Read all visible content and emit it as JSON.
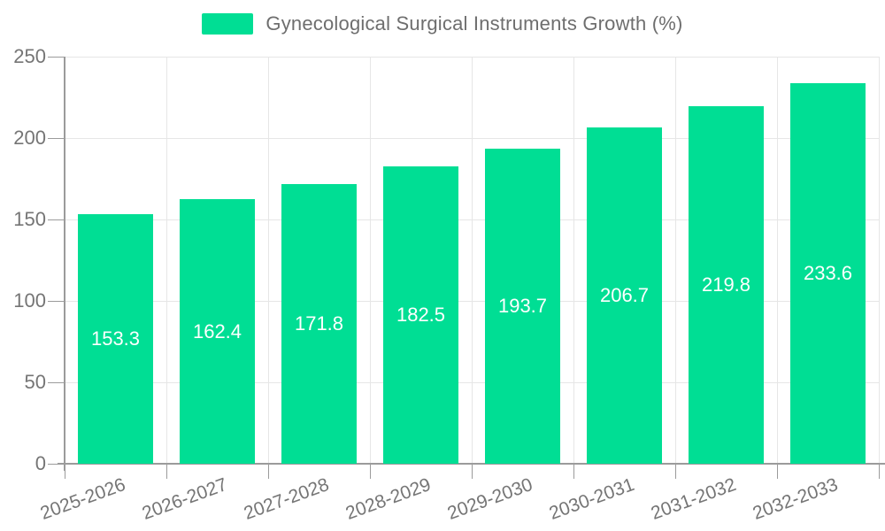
{
  "legend": {
    "label": "Gynecological Surgical Instruments Growth (%)",
    "swatch_color": "#00DE94"
  },
  "chart_data": {
    "type": "bar",
    "title": "",
    "xlabel": "",
    "ylabel": "",
    "categories": [
      "2025-2026",
      "2026-2027",
      "2027-2028",
      "2028-2029",
      "2029-2030",
      "2030-2031",
      "2031-2032",
      "2032-2033"
    ],
    "series": [
      {
        "name": "Gynecological Surgical Instruments Growth (%)",
        "values": [
          153.3,
          162.4,
          171.8,
          182.5,
          193.7,
          206.7,
          219.8,
          233.6
        ]
      }
    ],
    "value_labels_shown": true,
    "ylim": [
      0,
      250
    ],
    "yticks": [
      0,
      50,
      100,
      150,
      200,
      250
    ],
    "grid": true,
    "legend_position": "top",
    "x_label_rotation_deg": -20
  },
  "colors": {
    "bar": "#00DE94",
    "grid": "#E6E6E6",
    "axis": "#9B9B9B",
    "tick_text": "#757575",
    "value_text": "#FFFFFF",
    "background": "#FFFFFF"
  }
}
